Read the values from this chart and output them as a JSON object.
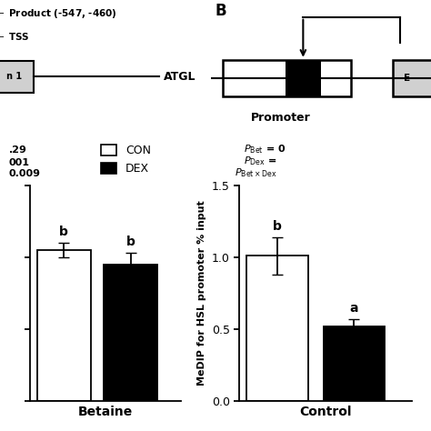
{
  "left_chart": {
    "group_label": "Betaine",
    "values": [
      1.05,
      0.95
    ],
    "errors": [
      0.05,
      0.08
    ],
    "colors": [
      "#ffffff",
      "#000000"
    ],
    "bar_labels": [
      "b",
      "b"
    ]
  },
  "right_chart": {
    "group_label": "Control",
    "values": [
      1.01,
      0.52
    ],
    "errors": [
      0.13,
      0.05
    ],
    "colors": [
      "#ffffff",
      "#000000"
    ],
    "bar_labels": [
      "b",
      "a"
    ],
    "ylabel": "MeDIP for HSL promoter % input"
  },
  "ylim": [
    0.0,
    1.5
  ],
  "yticks": [
    0.0,
    0.5,
    1.0,
    1.5
  ],
  "legend_labels": [
    "CON",
    "DEX"
  ],
  "legend_colors": [
    "#ffffff",
    "#000000"
  ],
  "pbet_text": "P_{\\\\rm Bet} = 0",
  "pdex_text": "P_{\\\\rm Dex} =",
  "pbetxdex_text": "P_{\\\\rm Bet \\\\times Dex}",
  "left_pval1": ".29",
  "left_pval2": "001",
  "left_pval3": "0.009",
  "background_color": "#ffffff",
  "bar_edgecolor": "#000000",
  "bar_width": 0.32
}
